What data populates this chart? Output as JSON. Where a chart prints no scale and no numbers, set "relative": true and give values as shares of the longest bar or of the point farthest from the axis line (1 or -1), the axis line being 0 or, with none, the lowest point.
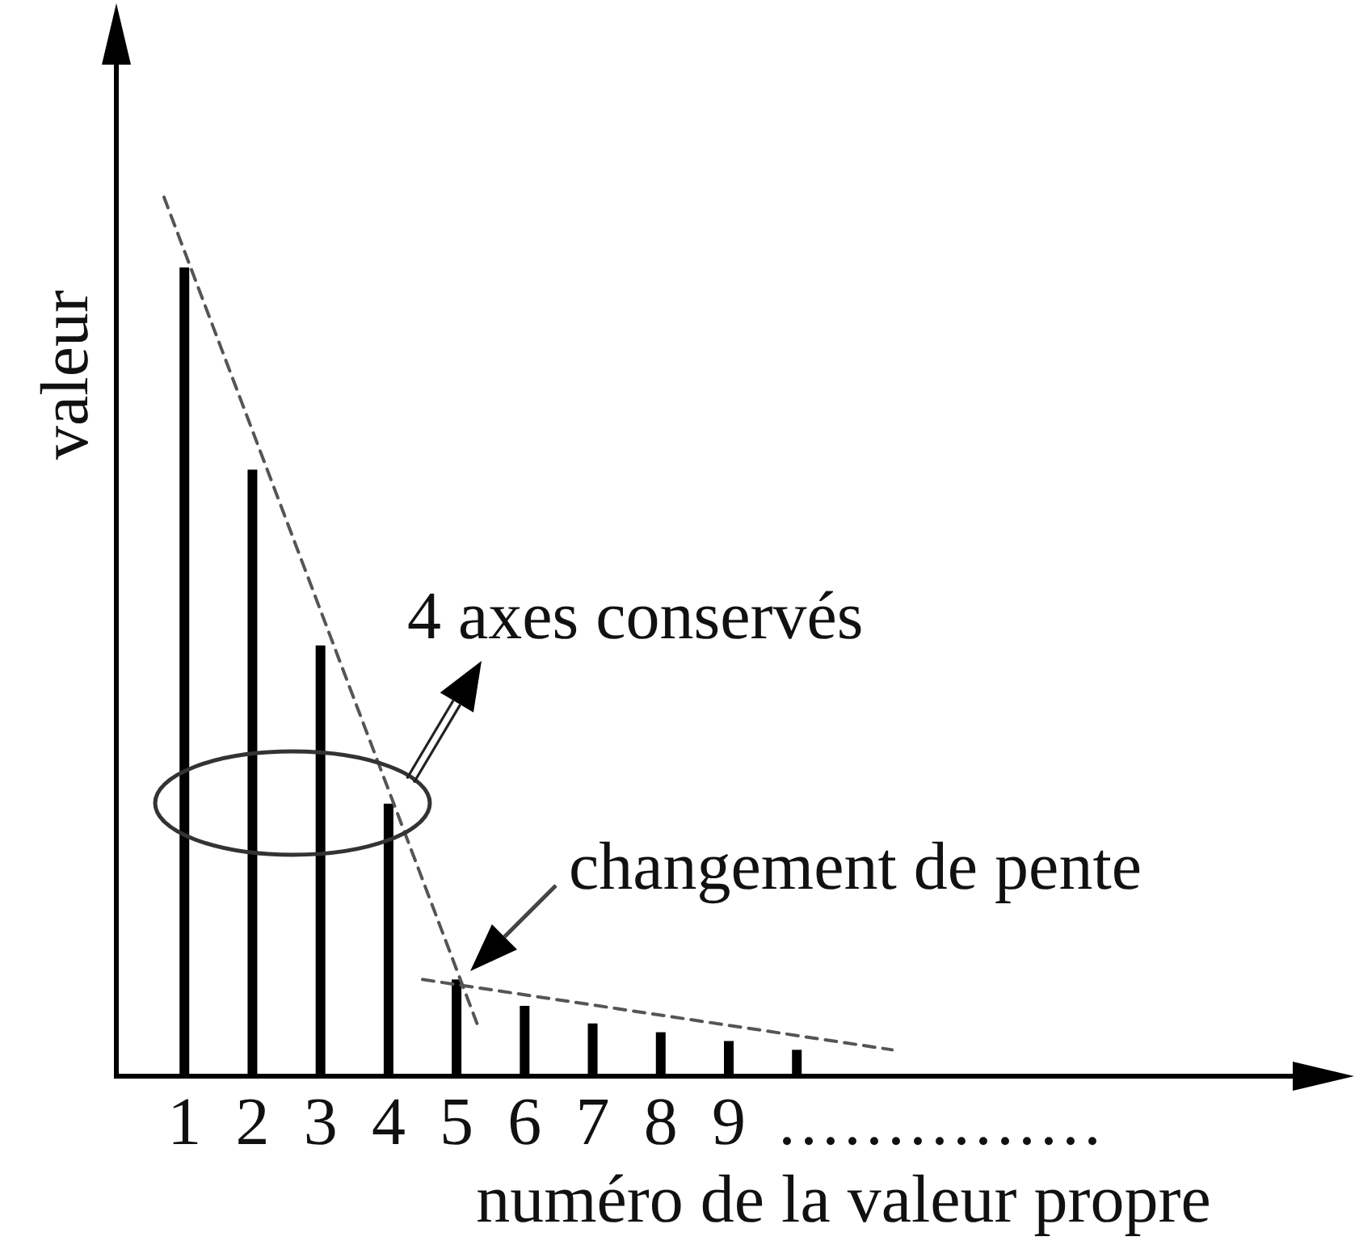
{
  "chart_data": {
    "type": "bar",
    "relative": true,
    "xlabel": "numéro de la valeur propre",
    "ylabel": "valeur",
    "x": [
      1,
      2,
      3,
      4,
      5,
      6,
      7,
      8,
      9,
      10
    ],
    "xlim": [
      0,
      18
    ],
    "xticks": [
      1,
      2,
      3,
      4,
      5,
      6,
      7,
      8,
      9,
      {
        "value": 12.1,
        "label": "..............."
      }
    ],
    "line_style": "dashed",
    "series": [
      {
        "color": "#000000",
        "values": [
          0.92,
          0.69,
          0.49,
          0.31,
          0.11,
          0.08,
          0.06,
          0.05,
          0.04,
          0.03
        ]
      },
      {
        "type": "line",
        "color": "#555555",
        "x": [
          0.7,
          5.3
        ],
        "values": [
          1,
          0.06
        ]
      },
      {
        "type": "line",
        "color": "#555555",
        "x": [
          4.5,
          11.4
        ],
        "values": [
          0.11,
          0.03
        ]
      }
    ],
    "annotations": [
      "4 axes conservés",
      "changement de pente"
    ]
  }
}
